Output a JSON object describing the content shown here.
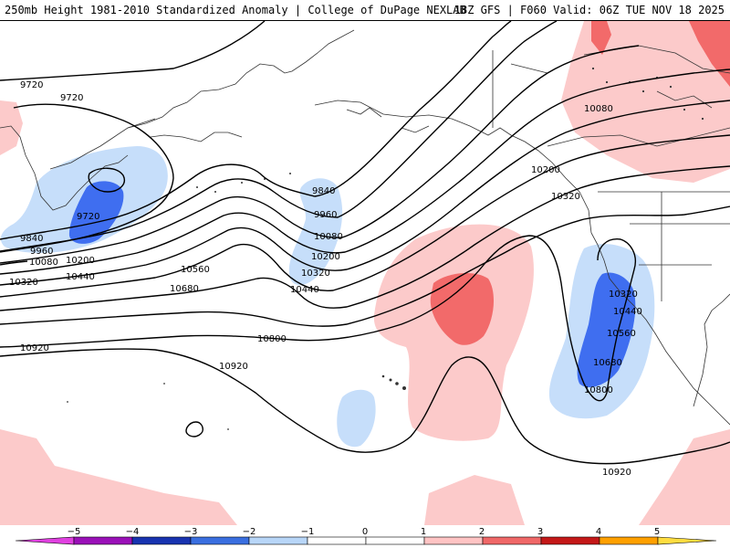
{
  "header": {
    "title_left": "250mb Height 1981-2010 Standardized Anomaly | College of DuPage NEXLAB",
    "title_right": "18Z GFS | F060 Valid: 06Z TUE NOV 18 2025"
  },
  "contours": {
    "labels": [
      "9720",
      "9720",
      "9840",
      "9960",
      "10080",
      "10200",
      "10320",
      "10440",
      "9720",
      "9840",
      "9960",
      "10080",
      "10200",
      "10320",
      "10440",
      "10560",
      "10680",
      "10800",
      "10920",
      "10920",
      "10080",
      "10200",
      "10320",
      "10320",
      "10440",
      "10560",
      "10680",
      "10800",
      "10920"
    ]
  },
  "legend": {
    "ticks": [
      "−5",
      "−4",
      "−3",
      "−2",
      "−1",
      "0",
      "1",
      "2",
      "3",
      "4",
      "5"
    ],
    "colors": [
      "#e040e0",
      "#9a10b8",
      "#1833b0",
      "#3a6fe0",
      "#b8d6f8",
      "#ffffff",
      "#ffffff",
      "#ffc4c4",
      "#f06868",
      "#c41818",
      "#ffa000",
      "#ffdd40"
    ]
  },
  "colors": {
    "light_blue": "#c6defa",
    "mid_blue": "#3f6ef0",
    "light_red": "#fccaca",
    "mid_red": "#f26a6a",
    "coast": "#333333",
    "contour": "#000000"
  }
}
